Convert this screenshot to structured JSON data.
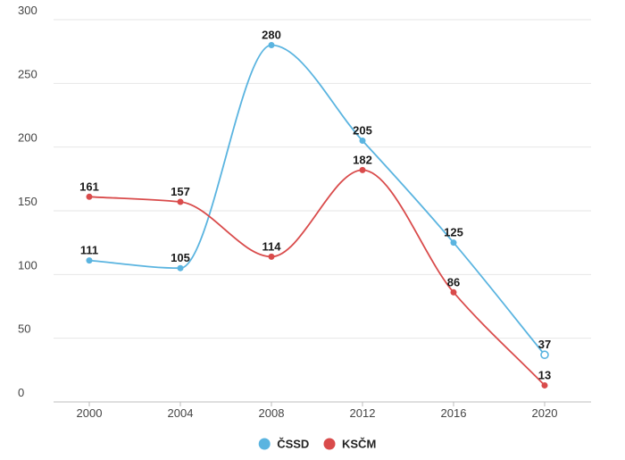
{
  "chart_data": {
    "type": "line",
    "categories": [
      "2000",
      "2004",
      "2008",
      "2012",
      "2016",
      "2020"
    ],
    "ylim": [
      0,
      300
    ],
    "yticks": [
      0,
      50,
      100,
      150,
      200,
      250,
      300
    ],
    "grid": "horizontal",
    "legend_position": "bottom-center",
    "series": [
      {
        "name": "ČSSD",
        "color": "#5ab4e0",
        "values": [
          111,
          105,
          280,
          205,
          125,
          37
        ],
        "hollow_last_point": true
      },
      {
        "name": "KSČM",
        "color": "#d94b4b",
        "values": [
          161,
          157,
          114,
          182,
          86,
          13
        ]
      }
    ]
  }
}
